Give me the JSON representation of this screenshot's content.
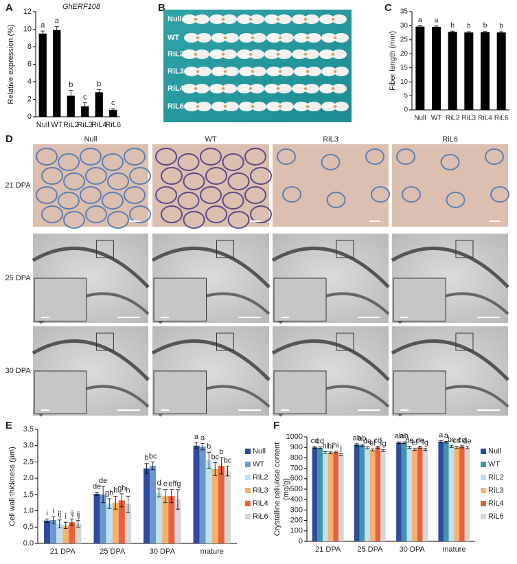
{
  "chart_data": [
    {
      "type": "bar",
      "panel": "A",
      "title": "GhERF108",
      "ylabel": [
        "Relative expression (%)"
      ],
      "categories": [
        "Null",
        "WT",
        "RiL2",
        "RiL3",
        "RiL4",
        "RiL6"
      ],
      "values": [
        9.5,
        9.9,
        2.4,
        1.2,
        2.8,
        0.8
      ],
      "errors": [
        0.3,
        0.4,
        0.6,
        0.4,
        0.3,
        0.15
      ],
      "annotations": [
        "a",
        "a",
        "b",
        "c",
        "b",
        "c"
      ],
      "color": "#000000",
      "ylim": [
        0,
        12
      ],
      "yticks": [
        0,
        2,
        4,
        6,
        8,
        10,
        12
      ]
    },
    {
      "type": "bar",
      "panel": "C",
      "ylabel": [
        "Fiber length (mm)"
      ],
      "categories": [
        "Null",
        "WT",
        "RiL2",
        "RiL3",
        "RiL4",
        "RiL6"
      ],
      "values": [
        29.7,
        29.6,
        27.8,
        27.6,
        27.7,
        27.6
      ],
      "errors": [
        0.3,
        0.3,
        0.3,
        0.3,
        0.3,
        0.3
      ],
      "annotations": [
        "a",
        "a",
        "b",
        "b",
        "b",
        "b"
      ],
      "color": "#000000",
      "ylim": [
        0,
        35
      ],
      "yticks": [
        0,
        5,
        10,
        15,
        20,
        25,
        30,
        35
      ]
    },
    {
      "type": "grouped-bar",
      "panel": "E",
      "ylabel": [
        "Cell wall thickness (μm)"
      ],
      "categories": [
        "21 DPA",
        "25 DPA",
        "30 DPA",
        "mature"
      ],
      "series": [
        {
          "name": "Null",
          "color": "#2e4a9e",
          "values": [
            0.7,
            1.52,
            2.3,
            3.0
          ],
          "errors": [
            0.05,
            0.05,
            0.15,
            0.1
          ],
          "annotations": [
            "i",
            "de",
            "b",
            "a"
          ]
        },
        {
          "name": "WT",
          "color": "#6b97cc",
          "values": [
            0.72,
            1.5,
            2.38,
            2.97
          ],
          "errors": [
            0.1,
            0.25,
            0.12,
            0.1
          ],
          "annotations": [
            "i",
            "de",
            "bc",
            "a"
          ]
        },
        {
          "name": "RiL2",
          "color": "#bfe0f2",
          "values": [
            0.6,
            1.22,
            1.55,
            2.55
          ],
          "errors": [
            0.12,
            0.15,
            0.12,
            0.25
          ],
          "annotations": [
            "ij",
            "gh",
            "d",
            "b"
          ]
        },
        {
          "name": "RiL3",
          "color": "#f5b26b",
          "values": [
            0.55,
            1.25,
            1.45,
            2.28
          ],
          "errors": [
            0.1,
            0.2,
            0.2,
            0.2
          ],
          "annotations": [
            "i",
            "h",
            "e",
            "bc"
          ]
        },
        {
          "name": "RiL4",
          "color": "#e8603c",
          "values": [
            0.65,
            1.32,
            1.45,
            2.38
          ],
          "errors": [
            0.1,
            0.2,
            0.2,
            0.25
          ],
          "annotations": [
            "ij",
            "gh",
            "ef",
            "b"
          ]
        },
        {
          "name": "RiL6",
          "color": "#d6d6d6",
          "values": [
            0.6,
            1.2,
            1.35,
            2.22
          ],
          "errors": [
            0.1,
            0.25,
            0.3,
            0.15
          ],
          "annotations": [
            "ij",
            "h",
            "fg",
            "bc"
          ]
        }
      ],
      "ylim": [
        0,
        3.5
      ],
      "yticks": [
        {
          "value": 0,
          "label": "0.0"
        },
        0.5,
        {
          "value": 1,
          "label": "1.0"
        },
        1.5,
        {
          "value": 2,
          "label": "2.0"
        },
        2.5,
        {
          "value": 3,
          "label": "3.0"
        },
        3.5
      ],
      "legend": "right"
    },
    {
      "type": "grouped-bar",
      "panel": "F",
      "ylabel": [
        "Crystalline cellulose content",
        "(mg/g)"
      ],
      "categories": [
        "21 DPA",
        "25 DPA",
        "30 DPA",
        "mature"
      ],
      "series": [
        {
          "name": "Null",
          "color": "#2e4a9e",
          "values": [
            900,
            925,
            945,
            955
          ],
          "errors": [
            8,
            10,
            8,
            8
          ],
          "annotations": [
            "cd",
            "ab",
            "ab",
            "a"
          ]
        },
        {
          "name": "WT",
          "color": "#3f95a8",
          "values": [
            895,
            920,
            945,
            950
          ],
          "errors": [
            8,
            10,
            8,
            8
          ],
          "annotations": [
            "cd",
            "ab",
            "ab",
            "a"
          ]
        },
        {
          "name": "RiL2",
          "color": "#bfe0f2",
          "values": [
            850,
            895,
            900,
            910
          ],
          "errors": [
            8,
            10,
            10,
            10
          ],
          "annotations": [
            "hi",
            "de",
            "de",
            "bc"
          ]
        },
        {
          "name": "RiL3",
          "color": "#f5b26b",
          "values": [
            848,
            875,
            880,
            900
          ],
          "errors": [
            8,
            10,
            10,
            10
          ],
          "annotations": [
            "hi",
            "ef",
            "ef",
            "cd"
          ]
        },
        {
          "name": "RiL4",
          "color": "#e8603c",
          "values": [
            855,
            900,
            900,
            905
          ],
          "errors": [
            8,
            10,
            10,
            10
          ],
          "annotations": [
            "hi",
            "cd",
            "de",
            "cd"
          ]
        },
        {
          "name": "RiL6",
          "color": "#d6d6d6",
          "values": [
            830,
            870,
            880,
            895
          ],
          "errors": [
            8,
            10,
            10,
            10
          ],
          "annotations": [
            "j",
            "fg",
            "fg",
            "de"
          ]
        }
      ],
      "ylim": [
        0,
        1000
      ],
      "yticks": [
        0,
        100,
        200,
        300,
        400,
        500,
        600,
        700,
        800,
        900,
        1000
      ],
      "legend": "right"
    }
  ],
  "photo_panel": {
    "panel": "B",
    "rows": [
      "Null",
      "WT",
      "RiL2",
      "RiL3",
      "RiL4",
      "RiL6"
    ]
  },
  "micrograph_panel": {
    "panel": "D",
    "columns": [
      "Null",
      "WT",
      "RiL3",
      "RiL6"
    ],
    "rows": [
      "21 DPA",
      "25 DPA",
      "30 DPA"
    ]
  }
}
